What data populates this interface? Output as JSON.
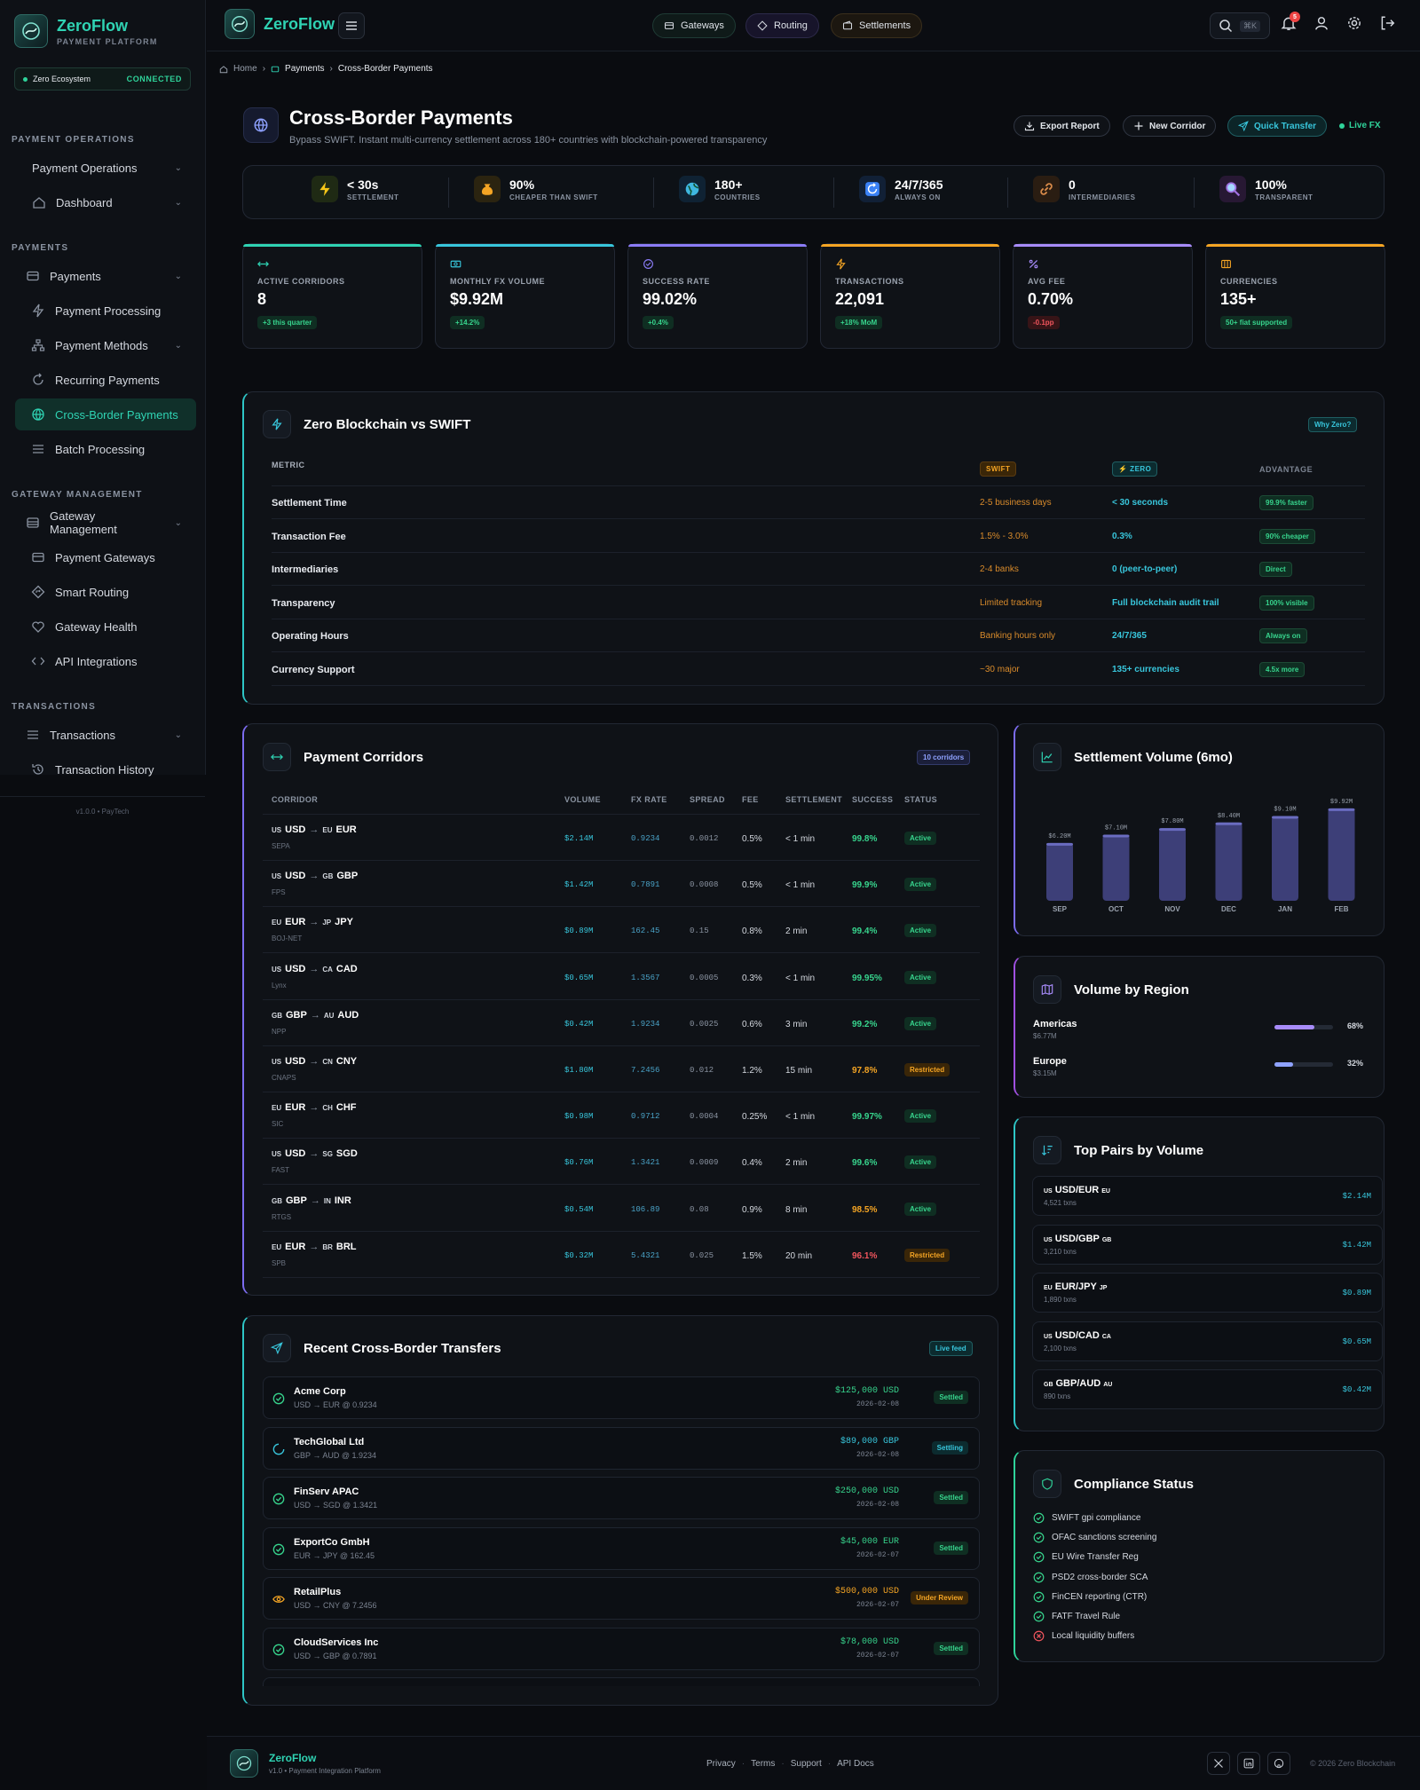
{
  "sidebar": {
    "brand": {
      "name": "ZeroFlow",
      "sub": "PAYMENT PLATFORM"
    },
    "eco": {
      "label": "Zero Ecosystem",
      "status": "CONNECTED"
    },
    "sections": [
      {
        "title": "PAYMENT OPERATIONS",
        "items": [
          "Payment Operations",
          "Dashboard"
        ]
      },
      {
        "title": "PAYMENTS",
        "items": [
          "Payments",
          "Payment Processing",
          "Payment Methods",
          "Recurring Payments",
          "Cross-Border Payments",
          "Batch Processing"
        ]
      },
      {
        "title": "GATEWAY MANAGEMENT",
        "items": [
          "Gateway Management",
          "Payment Gateways",
          "Smart Routing",
          "Gateway Health",
          "API Integrations"
        ]
      },
      {
        "title": "TRANSACTIONS",
        "items": [
          "Transactions",
          "Transaction History"
        ]
      }
    ],
    "version": "v1.0.0 • PayTech"
  },
  "topbar": {
    "brand": "ZeroFlow",
    "pills": [
      "Gateways",
      "Routing",
      "Settlements"
    ],
    "search_kbd": "⌘K",
    "notif_count": "5"
  },
  "breadcrumb": [
    "Home",
    "Payments",
    "Cross-Border Payments"
  ],
  "header": {
    "title": "Cross-Border Payments",
    "subtitle": "Bypass SWIFT. Instant multi-currency settlement across 180+ countries with blockchain-powered transparency",
    "export": "Export Report",
    "new_corridor": "New Corridor",
    "quick_transfer": "Quick Transfer",
    "live": "Live FX"
  },
  "strip": [
    {
      "value": "< 30s",
      "label": "SETTLEMENT",
      "icon": "bolt-icon",
      "color": "#f5c518"
    },
    {
      "value": "90%",
      "label": "CHEAPER THAN SWIFT",
      "icon": "money-bag-icon",
      "color": "#f5a524"
    },
    {
      "value": "180+",
      "label": "COUNTRIES",
      "icon": "globe-icon",
      "color": "#3fb7e0"
    },
    {
      "value": "24/7/365",
      "label": "ALWAYS ON",
      "icon": "refresh-icon",
      "color": "#3b82f6"
    },
    {
      "value": "0",
      "label": "INTERMEDIARIES",
      "icon": "link-icon",
      "color": "#d98b4a"
    },
    {
      "value": "100%",
      "label": "TRANSPARENT",
      "icon": "magnifier-icon",
      "color": "#a070e0"
    }
  ],
  "kpis": [
    {
      "label": "ACTIVE CORRIDORS",
      "value": "8",
      "badge": "+3 this quarter",
      "tone": "green",
      "color": "#2fd3b3"
    },
    {
      "label": "MONTHLY FX VOLUME",
      "value": "$9.92M",
      "badge": "+14.2%",
      "tone": "green",
      "color": "#38c6dc"
    },
    {
      "label": "SUCCESS RATE",
      "value": "99.02%",
      "badge": "+0.4%",
      "tone": "green",
      "color": "#8b7cf6"
    },
    {
      "label": "TRANSACTIONS",
      "value": "22,091",
      "badge": "+18% MoM",
      "tone": "green",
      "color": "#f5a524"
    },
    {
      "label": "AVG FEE",
      "value": "0.70%",
      "badge": "-0.1pp",
      "tone": "red",
      "color": "#a78bfa"
    },
    {
      "label": "CURRENCIES",
      "value": "135+",
      "badge": "50+ fiat supported",
      "tone": "green",
      "color": "#f5a524"
    }
  ],
  "comparison": {
    "title": "Zero Blockchain vs SWIFT",
    "why": "Why Zero?",
    "headers": {
      "metric": "METRIC",
      "swift": "SWIFT",
      "zero": "⚡ ZERO",
      "adv": "ADVANTAGE"
    },
    "rows": [
      {
        "metric": "Settlement Time",
        "swift": "2-5 business days",
        "zero": "< 30 seconds",
        "adv": "99.9% faster"
      },
      {
        "metric": "Transaction Fee",
        "swift": "1.5% - 3.0%",
        "zero": "0.3%",
        "adv": "90% cheaper"
      },
      {
        "metric": "Intermediaries",
        "swift": "2-4 banks",
        "zero": "0 (peer-to-peer)",
        "adv": "Direct"
      },
      {
        "metric": "Transparency",
        "swift": "Limited tracking",
        "zero": "Full blockchain audit trail",
        "adv": "100% visible"
      },
      {
        "metric": "Operating Hours",
        "swift": "Banking hours only",
        "zero": "24/7/365",
        "adv": "Always on"
      },
      {
        "metric": "Currency Support",
        "swift": "~30 major",
        "zero": "135+ currencies",
        "adv": "4.5x more"
      }
    ]
  },
  "corridors": {
    "title": "Payment Corridors",
    "badge": "10 corridors",
    "headers": [
      "CORRIDOR",
      "VOLUME",
      "FX RATE",
      "SPREAD",
      "FEE",
      "SETTLEMENT",
      "SUCCESS",
      "STATUS"
    ],
    "rows": [
      {
        "f1": "US",
        "c1": "USD",
        "f2": "EU",
        "c2": "EUR",
        "net": "SEPA",
        "vol": "$2.14M",
        "fx": "0.9234",
        "spread": "0.0012",
        "fee": "0.5%",
        "settle": "< 1 min",
        "success": "99.8%",
        "status": "Active"
      },
      {
        "f1": "US",
        "c1": "USD",
        "f2": "GB",
        "c2": "GBP",
        "net": "FPS",
        "vol": "$1.42M",
        "fx": "0.7891",
        "spread": "0.0008",
        "fee": "0.5%",
        "settle": "< 1 min",
        "success": "99.9%",
        "status": "Active"
      },
      {
        "f1": "EU",
        "c1": "EUR",
        "f2": "JP",
        "c2": "JPY",
        "net": "BOJ-NET",
        "vol": "$0.89M",
        "fx": "162.45",
        "spread": "0.15",
        "fee": "0.8%",
        "settle": "2 min",
        "success": "99.4%",
        "status": "Active"
      },
      {
        "f1": "US",
        "c1": "USD",
        "f2": "CA",
        "c2": "CAD",
        "net": "Lynx",
        "vol": "$0.65M",
        "fx": "1.3567",
        "spread": "0.0005",
        "fee": "0.3%",
        "settle": "< 1 min",
        "success": "99.95%",
        "status": "Active"
      },
      {
        "f1": "GB",
        "c1": "GBP",
        "f2": "AU",
        "c2": "AUD",
        "net": "NPP",
        "vol": "$0.42M",
        "fx": "1.9234",
        "spread": "0.0025",
        "fee": "0.6%",
        "settle": "3 min",
        "success": "99.2%",
        "status": "Active"
      },
      {
        "f1": "US",
        "c1": "USD",
        "f2": "CN",
        "c2": "CNY",
        "net": "CNAPS",
        "vol": "$1.80M",
        "fx": "7.2456",
        "spread": "0.012",
        "fee": "1.2%",
        "settle": "15 min",
        "success": "97.8%",
        "status": "Restricted"
      },
      {
        "f1": "EU",
        "c1": "EUR",
        "f2": "CH",
        "c2": "CHF",
        "net": "SIC",
        "vol": "$0.98M",
        "fx": "0.9712",
        "spread": "0.0004",
        "fee": "0.25%",
        "settle": "< 1 min",
        "success": "99.97%",
        "status": "Active"
      },
      {
        "f1": "US",
        "c1": "USD",
        "f2": "SG",
        "c2": "SGD",
        "net": "FAST",
        "vol": "$0.76M",
        "fx": "1.3421",
        "spread": "0.0009",
        "fee": "0.4%",
        "settle": "2 min",
        "success": "99.6%",
        "status": "Active"
      },
      {
        "f1": "GB",
        "c1": "GBP",
        "f2": "IN",
        "c2": "INR",
        "net": "RTGS",
        "vol": "$0.54M",
        "fx": "106.89",
        "spread": "0.08",
        "fee": "0.9%",
        "settle": "8 min",
        "success": "98.5%",
        "status": "Active"
      },
      {
        "f1": "EU",
        "c1": "EUR",
        "f2": "BR",
        "c2": "BRL",
        "net": "SPB",
        "vol": "$0.32M",
        "fx": "5.4321",
        "spread": "0.025",
        "fee": "1.5%",
        "settle": "20 min",
        "success": "96.1%",
        "status": "Restricted"
      }
    ]
  },
  "chart_data": {
    "type": "bar",
    "title": "Settlement Volume (6mo)",
    "categories": [
      "SEP",
      "OCT",
      "NOV",
      "DEC",
      "JAN",
      "FEB"
    ],
    "values": [
      6.2,
      7.1,
      7.8,
      8.4,
      9.1,
      9.92
    ],
    "labels": [
      "$6.20M",
      "$7.10M",
      "$7.80M",
      "$8.40M",
      "$9.10M",
      "$9.92M"
    ],
    "ylim": [
      0,
      10
    ]
  },
  "regions": {
    "title": "Volume by Region",
    "items": [
      {
        "name": "Americas",
        "amount": "$6.77M",
        "pct": "68%",
        "value": 68
      },
      {
        "name": "Europe",
        "amount": "$3.15M",
        "pct": "32%",
        "value": 32
      }
    ]
  },
  "pairs": {
    "title": "Top Pairs by Volume",
    "items": [
      {
        "f1": "US",
        "pair": "USD/EUR",
        "f2": "EU",
        "txns": "4,521 txns",
        "vol": "$2.14M"
      },
      {
        "f1": "US",
        "pair": "USD/GBP",
        "f2": "GB",
        "txns": "3,210 txns",
        "vol": "$1.42M"
      },
      {
        "f1": "EU",
        "pair": "EUR/JPY",
        "f2": "JP",
        "txns": "1,890 txns",
        "vol": "$0.89M"
      },
      {
        "f1": "US",
        "pair": "USD/CAD",
        "f2": "CA",
        "txns": "2,100 txns",
        "vol": "$0.65M"
      },
      {
        "f1": "GB",
        "pair": "GBP/AUD",
        "f2": "AU",
        "txns": "890 txns",
        "vol": "$0.42M"
      }
    ]
  },
  "compliance": {
    "title": "Compliance Status",
    "items": [
      {
        "label": "SWIFT gpi compliance",
        "ok": true
      },
      {
        "label": "OFAC sanctions screening",
        "ok": true
      },
      {
        "label": "EU Wire Transfer Reg",
        "ok": true
      },
      {
        "label": "PSD2 cross-border SCA",
        "ok": true
      },
      {
        "label": "FinCEN reporting (CTR)",
        "ok": true
      },
      {
        "label": "FATF Travel Rule",
        "ok": true
      },
      {
        "label": "Local liquidity buffers",
        "ok": false
      }
    ]
  },
  "transfers": {
    "title": "Recent Cross-Border Transfers",
    "badge": "Live feed",
    "items": [
      {
        "name": "Acme Corp",
        "detail": "USD → EUR @ 0.9234",
        "amount": "$125,000 USD",
        "date": "2026-02-08",
        "status": "Settled",
        "state": "ok"
      },
      {
        "name": "TechGlobal Ltd",
        "detail": "GBP → AUD @ 1.9234",
        "amount": "$89,000 GBP",
        "date": "2026-02-08",
        "status": "Settling",
        "state": "pending"
      },
      {
        "name": "FinServ APAC",
        "detail": "USD → SGD @ 1.3421",
        "amount": "$250,000 USD",
        "date": "2026-02-08",
        "status": "Settled",
        "state": "ok"
      },
      {
        "name": "ExportCo GmbH",
        "detail": "EUR → JPY @ 162.45",
        "amount": "$45,000 EUR",
        "date": "2026-02-07",
        "status": "Settled",
        "state": "ok"
      },
      {
        "name": "RetailPlus",
        "detail": "USD → CNY @ 7.2456",
        "amount": "$500,000 USD",
        "date": "2026-02-07",
        "status": "Under Review",
        "state": "review"
      },
      {
        "name": "CloudServices Inc",
        "detail": "USD → GBP @ 0.7891",
        "amount": "$78,000 USD",
        "date": "2026-02-07",
        "status": "Settled",
        "state": "ok"
      }
    ]
  },
  "footer": {
    "brand": "ZeroFlow",
    "sub": "v1.0 • Payment Integration Platform",
    "links": [
      "Privacy",
      "Terms",
      "Support",
      "API Docs"
    ],
    "copyright": "© 2026 Zero Blockchain"
  },
  "colors": {
    "accent": "#2fd3b3",
    "swift": "#d98b2b",
    "zero": "#38c6dc",
    "success": "#37d48d"
  }
}
